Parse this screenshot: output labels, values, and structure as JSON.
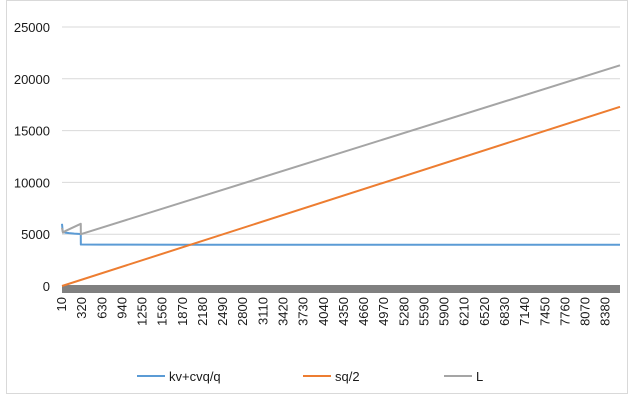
{
  "chart_data": {
    "type": "line",
    "title": "",
    "xlabel": "",
    "ylabel": "",
    "ylim": [
      0,
      25000
    ],
    "yticks": [
      "0",
      "5000",
      "10000",
      "15000",
      "20000",
      "25000"
    ],
    "xticks": [
      "10",
      "320",
      "630",
      "940",
      "1250",
      "1560",
      "1870",
      "2180",
      "2490",
      "2800",
      "3110",
      "3420",
      "3730",
      "4040",
      "4350",
      "4660",
      "4970",
      "5280",
      "5590",
      "5900",
      "6210",
      "6520",
      "6830",
      "7140",
      "7450",
      "7760",
      "8070",
      "8380"
    ],
    "xrange": [
      10,
      8600
    ],
    "grid": "horizontal",
    "legend_position": "bottom",
    "series": [
      {
        "name": "kv+cvq/q",
        "color": "#5b9bd5",
        "x": [
          10,
          20,
          60,
          120,
          200,
          290,
          299,
          300,
          600,
          2000,
          4000,
          6000,
          8000,
          8600
        ],
        "y": [
          6000,
          5300,
          5150,
          5100,
          5050,
          5020,
          5000,
          4000,
          3990,
          3985,
          3980,
          3980,
          3980,
          3980
        ]
      },
      {
        "name": "sq/2",
        "color": "#ed7d31",
        "x": [
          10,
          8600
        ],
        "y": [
          0,
          17300
        ]
      },
      {
        "name": "L",
        "color": "#a5a5a5",
        "x": [
          10,
          25,
          60,
          299,
          300,
          8600
        ],
        "y": [
          5600,
          5150,
          5300,
          6000,
          5000,
          21300
        ]
      }
    ]
  }
}
